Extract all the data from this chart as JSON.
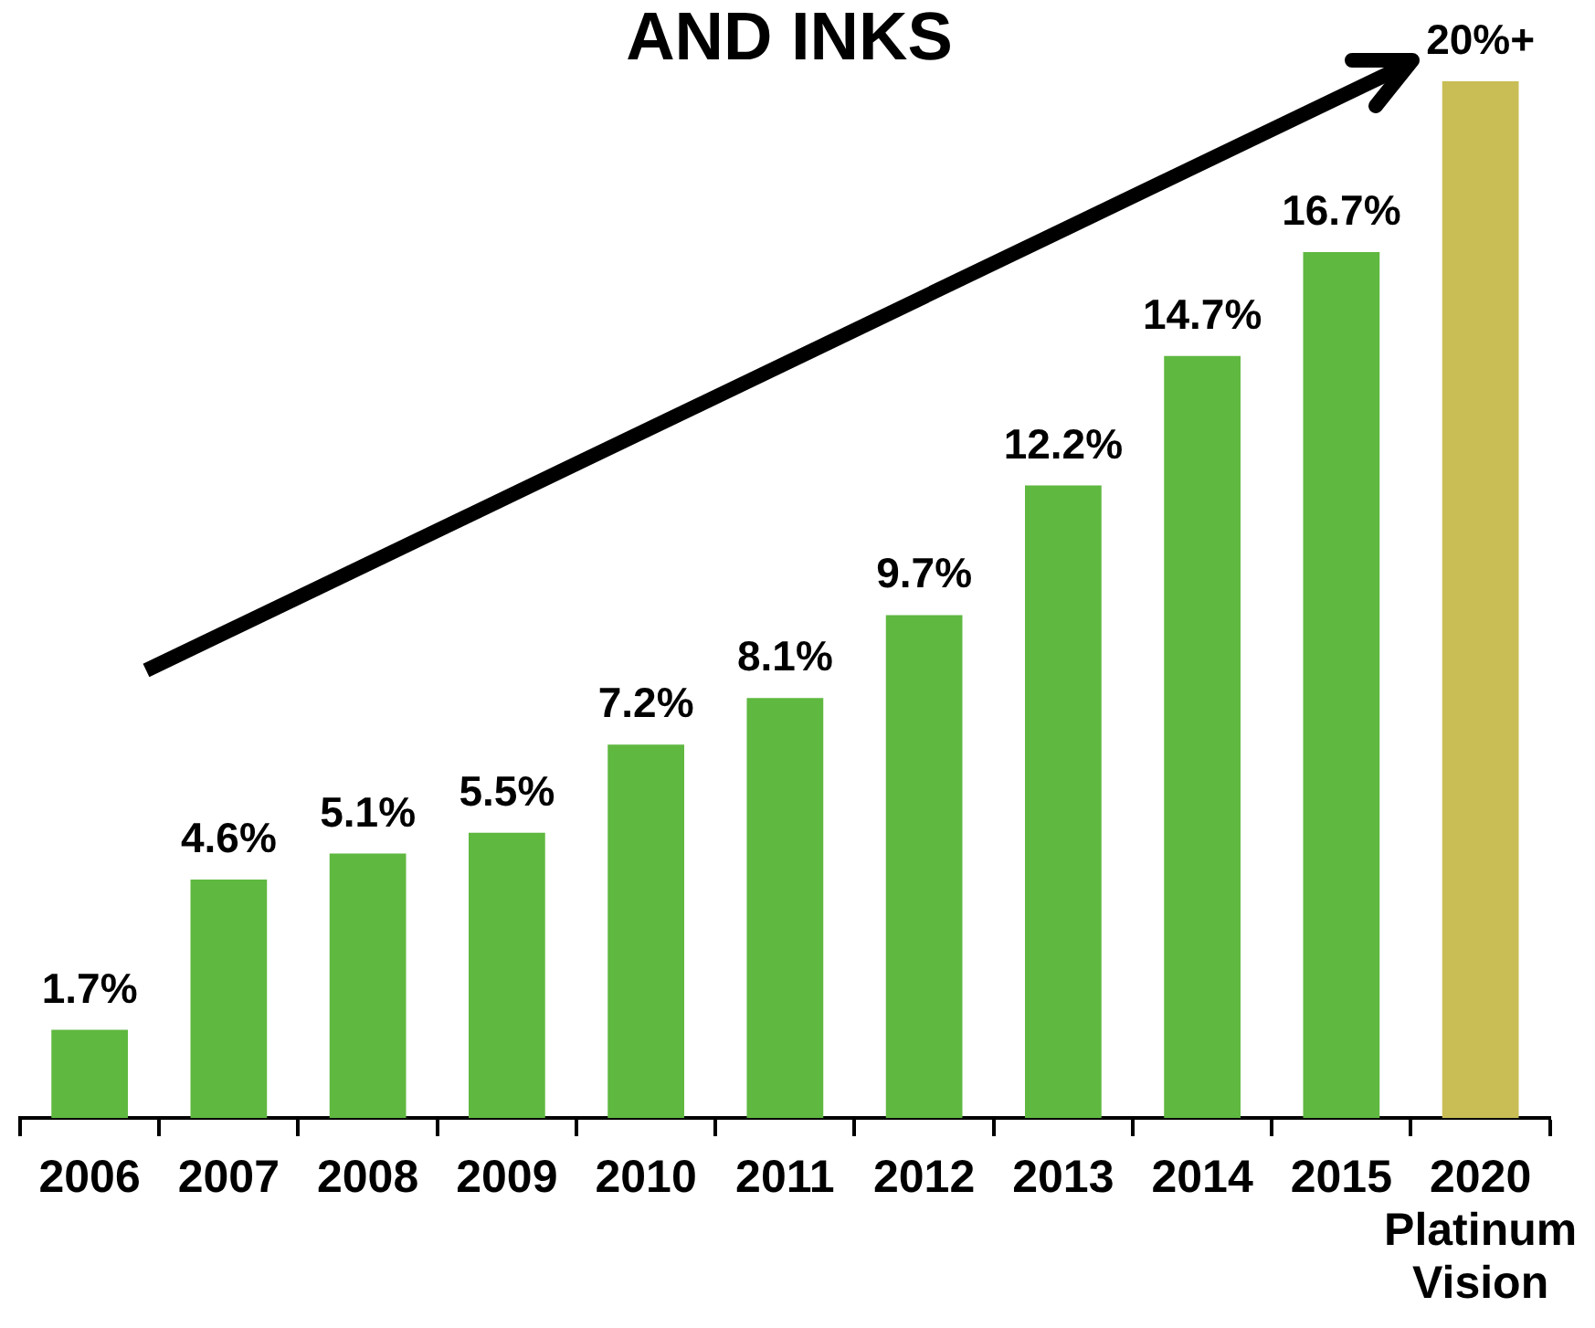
{
  "chart_data": {
    "type": "bar",
    "title": "AND INKS",
    "categories": [
      "2006",
      "2007",
      "2008",
      "2009",
      "2010",
      "2011",
      "2012",
      "2013",
      "2014",
      "2015",
      "2020\nPlatinum\nVision"
    ],
    "values": [
      1.7,
      4.6,
      5.1,
      5.5,
      7.2,
      8.1,
      9.7,
      12.2,
      14.7,
      16.7,
      20
    ],
    "colors": [
      "#5fb840",
      "#5fb840",
      "#5fb840",
      "#5fb840",
      "#5fb840",
      "#5fb840",
      "#5fb840",
      "#5fb840",
      "#5fb840",
      "#5fb840",
      "#c9bd55"
    ],
    "value_labels": [
      "1.7%",
      "4.6%",
      "5.1%",
      "5.5%",
      "7.2%",
      "8.1%",
      "9.7%",
      "12.2%",
      "14.7%",
      "16.7%",
      "20%+"
    ],
    "tick_labels": "x"
  }
}
